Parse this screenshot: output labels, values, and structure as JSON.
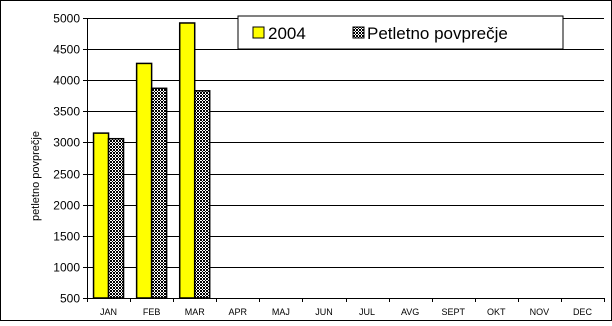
{
  "chart_data": {
    "type": "bar",
    "categories": [
      "JAN",
      "FEB",
      "MAR",
      "APR",
      "MAJ",
      "JUN",
      "JUL",
      "AVG",
      "SEPT",
      "OKT",
      "NOV",
      "DEC"
    ],
    "series": [
      {
        "name": "2004",
        "values": [
          3150,
          4270,
          4920,
          null,
          null,
          null,
          null,
          null,
          null,
          null,
          null,
          null
        ],
        "color": "#FFFF00"
      },
      {
        "name": "Petletno povprečje",
        "values": [
          3060,
          3870,
          3830,
          null,
          null,
          null,
          null,
          null,
          null,
          null,
          null,
          null
        ],
        "color": "#5a5a5a",
        "pattern": "crosshatch"
      }
    ],
    "ylabel": "petletno povprečje",
    "xlabel": "",
    "ylim": [
      500,
      5000
    ],
    "yticks": [
      500,
      1000,
      1500,
      2000,
      2500,
      3000,
      3500,
      4000,
      4500,
      5000
    ],
    "grid": true,
    "legend_position": "top-right"
  }
}
